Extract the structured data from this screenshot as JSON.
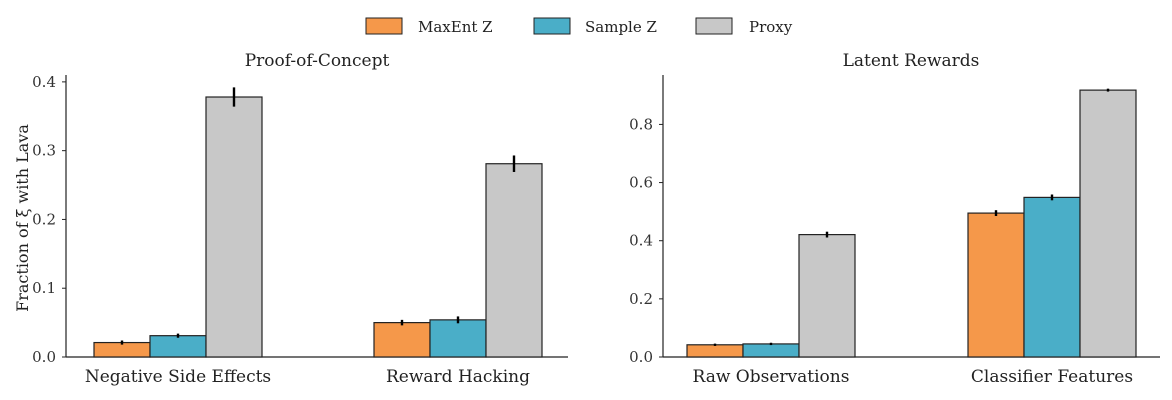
{
  "colors": {
    "maxent": "#f5984a",
    "sample": "#4aaec8",
    "proxy": "#c8c8c8",
    "edge": "#222222"
  },
  "legend": {
    "items": [
      {
        "label": "MaxEnt Z",
        "color": "#f5984a"
      },
      {
        "label": "Sample Z",
        "color": "#4aaec8"
      },
      {
        "label": "Proxy",
        "color": "#c8c8c8"
      }
    ],
    "placement": "top-center"
  },
  "chart_data": [
    {
      "type": "bar",
      "title": "Proof-of-Concept",
      "ylabel": "Fraction of ξ with Lava",
      "categories": [
        "Negative Side Effects",
        "Reward Hacking"
      ],
      "ylim": [
        0,
        0.41
      ],
      "yticks": [
        0.0,
        0.1,
        0.2,
        0.3,
        0.4
      ],
      "ytick_labels": [
        "0.0",
        "0.1",
        "0.2",
        "0.3",
        "0.4"
      ],
      "series": [
        {
          "name": "MaxEnt Z",
          "values": [
            0.021,
            0.05
          ],
          "errors": [
            0.003,
            0.004
          ]
        },
        {
          "name": "Sample Z",
          "values": [
            0.031,
            0.054
          ],
          "errors": [
            0.003,
            0.005
          ]
        },
        {
          "name": "Proxy",
          "values": [
            0.378,
            0.281
          ],
          "errors": [
            0.014,
            0.012
          ]
        }
      ],
      "grid": false
    },
    {
      "type": "bar",
      "title": "Latent Rewards",
      "ylabel": "",
      "categories": [
        "Raw Observations",
        "Classifier Features"
      ],
      "ylim": [
        0,
        0.97
      ],
      "yticks": [
        0.0,
        0.2,
        0.4,
        0.6,
        0.8
      ],
      "ytick_labels": [
        "0.0",
        "0.2",
        "0.4",
        "0.6",
        "0.8"
      ],
      "series": [
        {
          "name": "MaxEnt Z",
          "values": [
            0.042,
            0.495
          ],
          "errors": [
            0.004,
            0.01
          ]
        },
        {
          "name": "Sample Z",
          "values": [
            0.045,
            0.549
          ],
          "errors": [
            0.004,
            0.01
          ]
        },
        {
          "name": "Proxy",
          "values": [
            0.421,
            0.918
          ],
          "errors": [
            0.01,
            0.005
          ]
        }
      ],
      "grid": false
    }
  ]
}
